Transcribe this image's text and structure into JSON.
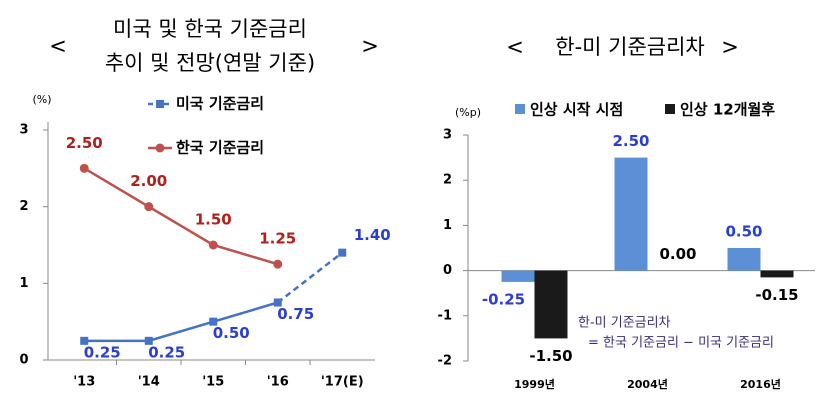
{
  "chart_data": [
    {
      "type": "line",
      "title_open": "<",
      "title_close": ">",
      "title_lines": [
        "미국 및 한국 기준금리",
        "추이 및 전망(연말 기준)"
      ],
      "y_unit": "(%)",
      "categories": [
        "'13",
        "'14",
        "'15",
        "'16",
        "'17(E)"
      ],
      "ylim": [
        0,
        3
      ],
      "yticks": [
        0,
        1,
        2,
        3
      ],
      "series": [
        {
          "name": "미국 기준금리",
          "color": "#4472c4",
          "label_color": "#2a3fd0",
          "marker": "square",
          "values": [
            0.25,
            0.25,
            0.5,
            0.75,
            1.4
          ],
          "value_labels": [
            "0.25",
            "0.25",
            "0.50",
            "0.75",
            "1.40"
          ]
        },
        {
          "name": "한국 기준금리",
          "color": "#c0504d",
          "label_color": "#b0201c",
          "marker": "circle",
          "values": [
            2.5,
            2.0,
            1.5,
            1.25,
            null
          ],
          "value_labels": [
            "2.50",
            "2.00",
            "1.50",
            "1.25",
            null
          ]
        }
      ]
    },
    {
      "type": "bar",
      "title_open": "<",
      "title_close": ">",
      "title_lines": [
        "한-미 기준금리차"
      ],
      "y_unit": "(%p)",
      "categories": [
        "1999년",
        "2004년",
        "2016년"
      ],
      "ylim": [
        -2,
        3
      ],
      "yticks": [
        -2,
        -1,
        0,
        1,
        2,
        3
      ],
      "series": [
        {
          "name": "인상 시작 시점",
          "color": "#5b8fd6",
          "label_color": "#2a3fd0",
          "values": [
            -0.25,
            2.5,
            0.5
          ],
          "value_labels": [
            "-0.25",
            "2.50",
            "0.50"
          ]
        },
        {
          "name": "인상 12개월후",
          "color": "#1a1a1a",
          "label_color": "#000000",
          "values": [
            -1.5,
            0.0,
            -0.15
          ],
          "value_labels": [
            "-1.50",
            "0.00",
            "-0.15"
          ]
        }
      ],
      "annotation_lines": [
        "한-미 기준금리차",
        "= 한국 기준금리 − 미국 기준금리"
      ]
    }
  ]
}
